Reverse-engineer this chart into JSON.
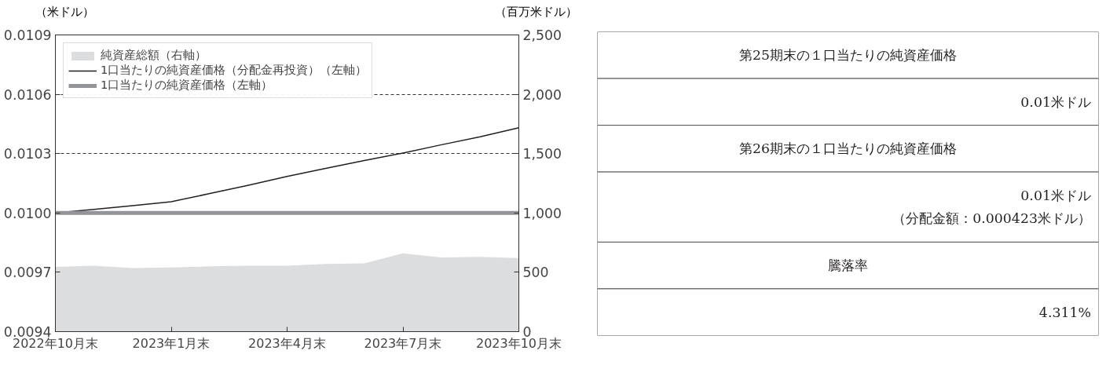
{
  "chart_data": [
    {
      "type": "line",
      "ylabel": "（米ドル）",
      "y2label": "（百万米ドル）",
      "x": [
        "2022-10",
        "2022-11",
        "2022-12",
        "2023-01",
        "2023-02",
        "2023-03",
        "2023-04",
        "2023-05",
        "2023-06",
        "2023-07",
        "2023-08",
        "2023-09",
        "2023-10"
      ],
      "series": [
        {
          "name": "純資産総額（右軸）",
          "type": "area",
          "axis": "y2",
          "color": "#dcdddf",
          "values": [
            545,
            555,
            535,
            540,
            550,
            555,
            555,
            570,
            575,
            660,
            625,
            630,
            620
          ]
        },
        {
          "name": "1口当たりの純資産価格（分配金再投資）（左軸）",
          "type": "line",
          "color": "#231f20",
          "values": [
            0.01,
            0.010018,
            0.010037,
            0.010057,
            0.010098,
            0.01014,
            0.010185,
            0.010225,
            0.010265,
            0.010303,
            0.010345,
            0.010385,
            0.010431
          ]
        },
        {
          "name": "1口当たりの純資産価格（左軸）",
          "type": "line",
          "color": "#929497",
          "values": [
            0.01,
            0.01,
            0.01,
            0.01,
            0.01,
            0.01,
            0.01,
            0.01,
            0.01,
            0.01,
            0.01,
            0.01,
            0.01
          ]
        }
      ],
      "xlim": [
        "2022-10",
        "2023-10"
      ],
      "xticks": [
        {
          "value": "2022-10",
          "label": "2022年10月末"
        },
        {
          "value": "2023-01",
          "label": "2023年1月末"
        },
        {
          "value": "2023-04",
          "label": "2023年4月末"
        },
        {
          "value": "2023-07",
          "label": "2023年7月末"
        },
        {
          "value": "2023-10",
          "label": "2023年10月末"
        }
      ],
      "ylim": [
        0.0094,
        0.0109
      ],
      "yticks": [
        0.0094,
        0.0097,
        {
          "value": 0.01,
          "label": "0.0100"
        },
        0.0103,
        0.0106,
        0.0109
      ],
      "y2lim": [
        0,
        2500
      ],
      "y2ticks": [
        0,
        500,
        {
          "value": 1000,
          "label": "1,000"
        },
        {
          "value": 1500,
          "label": "1,500"
        },
        {
          "value": 2000,
          "label": "2,000"
        },
        {
          "value": 2500,
          "label": "2,500"
        }
      ],
      "grid": "y",
      "legend": "top left"
    },
    {
      "type": "other",
      "annotations": [
        "第25期末の１口当たりの純資産価格",
        "0.01米ドル",
        "第26期末の１口当たりの純資産価格",
        "0.01米ドル",
        "（分配金額：0.000423米ドル）",
        "騰落率",
        "4.311%"
      ]
    }
  ]
}
